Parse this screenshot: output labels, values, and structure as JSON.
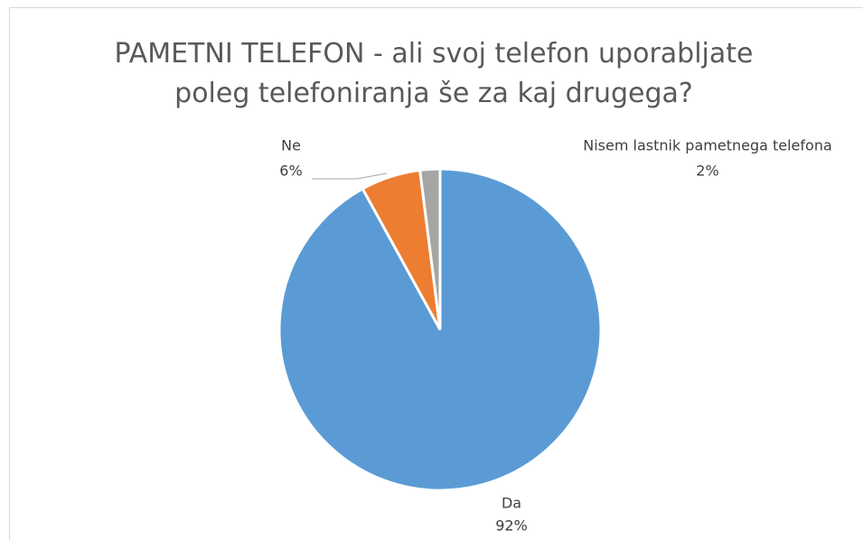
{
  "chart_data": {
    "type": "pie",
    "title": "PAMETNI TELEFON - ali svoj telefon uporabljate poleg telefoniranja še za kaj drugega?",
    "categories": [
      "Da",
      "Ne",
      "Nisem lastnik pametnega telefona"
    ],
    "values": [
      92,
      6,
      2
    ],
    "value_labels": [
      "92%",
      "6%",
      "2%"
    ],
    "colors": [
      "#5b9bd5",
      "#ed7d31",
      "#a5a5a5"
    ]
  }
}
